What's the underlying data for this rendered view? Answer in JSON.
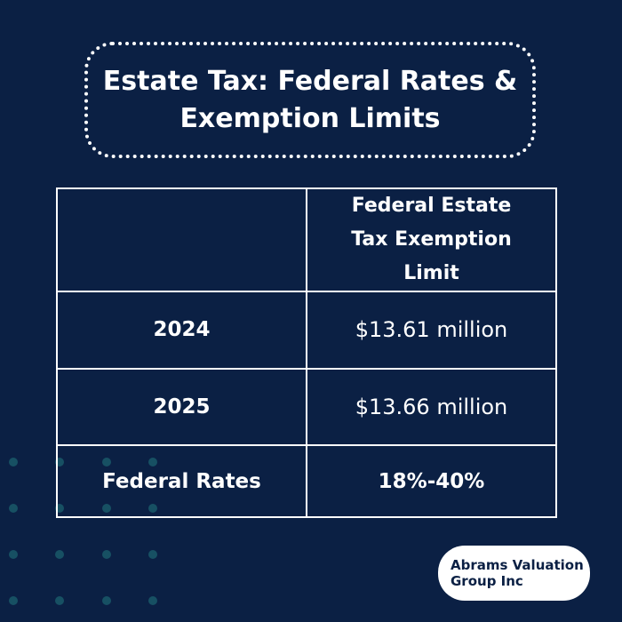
{
  "header": {
    "title_lines": [
      "Estate Tax: Federal Rates &",
      "Exemption Limits"
    ]
  },
  "table": {
    "header": [
      "Federal Estate Tax Exemption Limit"
    ],
    "rows": [
      [
        "2024",
        "$13.61 million"
      ],
      [
        "2025",
        "$13.66 million"
      ],
      [
        "Federal Rates",
        "18%-40%"
      ]
    ]
  },
  "logo": {
    "text": "Abrams Valuation Group Inc"
  }
}
